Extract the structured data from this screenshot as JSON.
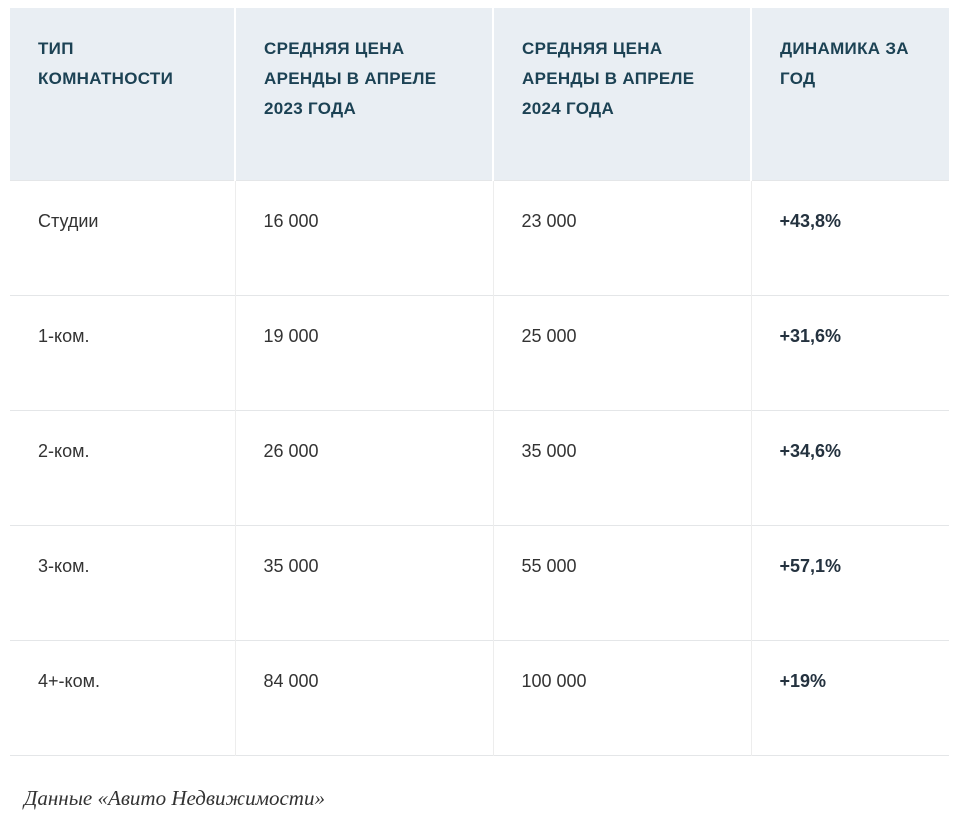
{
  "chart_data": {
    "type": "table",
    "columns": [
      "ТИП КОМНАТНОСТИ",
      "СРЕДНЯЯ ЦЕНА АРЕНДЫ В АПРЕЛЕ 2023 ГОДА",
      "СРЕДНЯЯ ЦЕНА АРЕНДЫ В АПРЕЛЕ 2024 ГОДА",
      "ДИНАМИКА ЗА ГОД"
    ],
    "rows": [
      [
        "Студии",
        "16 000",
        "23 000",
        "+43,8%"
      ],
      [
        "1-ком.",
        "19 000",
        "25 000",
        "+31,6%"
      ],
      [
        "2-ком.",
        "26 000",
        "35 000",
        "+34,6%"
      ],
      [
        "3-ком.",
        "35 000",
        "55 000",
        "+57,1%"
      ],
      [
        "4+-ком.",
        "84 000",
        "100 000",
        "+19%"
      ]
    ],
    "source": "Данные «Авито Недвижимости»",
    "layout": {
      "header_bg": "#e9eef3",
      "header_text_color": "#1c4254",
      "body_text_color": "#333333",
      "dynamics_text_color": "#24323f",
      "grid": "light horizontal and vertical dividers"
    }
  }
}
